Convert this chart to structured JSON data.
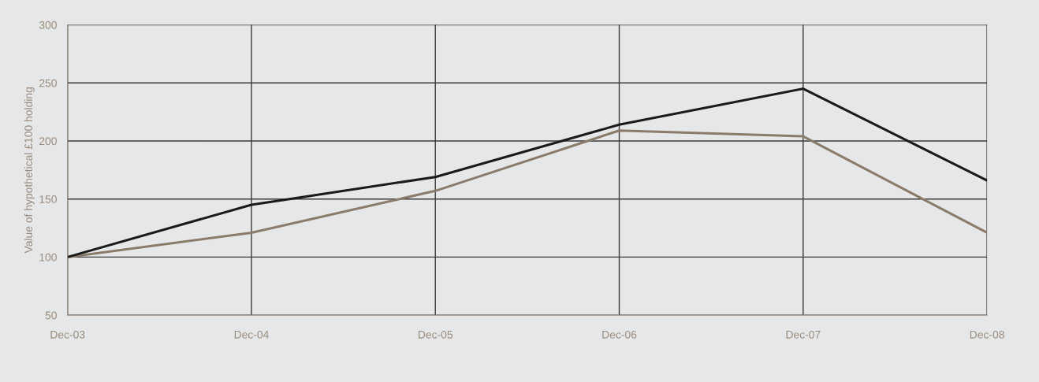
{
  "chart_data": {
    "type": "line",
    "ylabel": "Value of hypothetical £100 holding",
    "categories": [
      "Dec-03",
      "Dec-04",
      "Dec-05",
      "Dec-06",
      "Dec-07",
      "Dec-08"
    ],
    "series": [
      {
        "color": "#8b7b6b",
        "values": [
          100,
          121,
          157,
          209,
          204,
          121
        ]
      },
      {
        "color": "#1a1a1a",
        "values": [
          100,
          145,
          169,
          214,
          245,
          166
        ]
      }
    ],
    "ylim": [
      50,
      300
    ],
    "yticks": [
      50,
      100,
      150,
      200,
      250,
      300
    ],
    "grid": true,
    "marker": "none",
    "line_style": "solid"
  }
}
